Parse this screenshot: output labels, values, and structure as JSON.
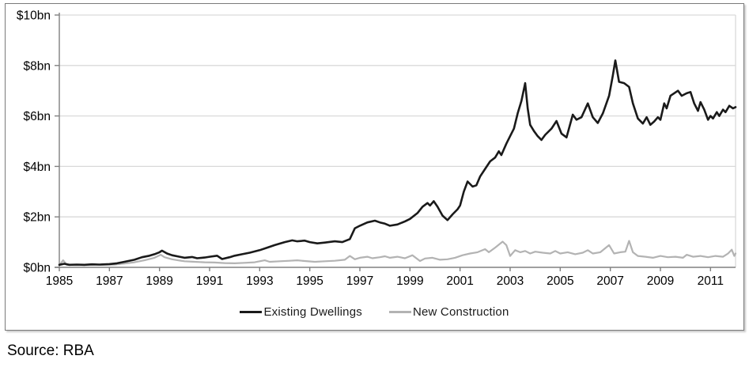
{
  "figure": {
    "source_note": "Source: RBA"
  },
  "chart_data": {
    "type": "line",
    "title": "",
    "xlabel": "",
    "ylabel": "",
    "unit": "$bn",
    "ylim": [
      0,
      10
    ],
    "xlim": [
      1985,
      2012.05
    ],
    "grid": "horizontal",
    "legend_position": "bottom-center",
    "y_ticks": [
      {
        "value": 0,
        "label": "$0bn"
      },
      {
        "value": 2,
        "label": "$2bn"
      },
      {
        "value": 4,
        "label": "$4bn"
      },
      {
        "value": 6,
        "label": "$6bn"
      },
      {
        "value": 8,
        "label": "$8bn"
      },
      {
        "value": 10,
        "label": "$10bn"
      }
    ],
    "x_ticks": [
      {
        "value": 1985,
        "label": "1985"
      },
      {
        "value": 1987,
        "label": "1987"
      },
      {
        "value": 1989,
        "label": "1989"
      },
      {
        "value": 1991,
        "label": "1991"
      },
      {
        "value": 1993,
        "label": "1993"
      },
      {
        "value": 1995,
        "label": "1995"
      },
      {
        "value": 1997,
        "label": "1997"
      },
      {
        "value": 1999,
        "label": "1999"
      },
      {
        "value": 2001,
        "label": "2001"
      },
      {
        "value": 2003,
        "label": "2003"
      },
      {
        "value": 2005,
        "label": "2005"
      },
      {
        "value": 2007,
        "label": "2007"
      },
      {
        "value": 2009,
        "label": "2009"
      },
      {
        "value": 2011,
        "label": "2011"
      }
    ],
    "colors": {
      "gridline": "#d9d9d9",
      "axis": "#808080",
      "text": "#000000"
    },
    "series": [
      {
        "name": "Existing Dwellings",
        "color": "#1a1a1a",
        "stroke_width": 2.6,
        "points": [
          [
            1985.0,
            0.1
          ],
          [
            1985.2,
            0.14
          ],
          [
            1985.4,
            0.1
          ],
          [
            1985.7,
            0.11
          ],
          [
            1986.0,
            0.1
          ],
          [
            1986.3,
            0.12
          ],
          [
            1986.6,
            0.11
          ],
          [
            1987.0,
            0.13
          ],
          [
            1987.3,
            0.16
          ],
          [
            1987.6,
            0.22
          ],
          [
            1988.0,
            0.3
          ],
          [
            1988.3,
            0.4
          ],
          [
            1988.6,
            0.46
          ],
          [
            1988.8,
            0.52
          ],
          [
            1989.0,
            0.6
          ],
          [
            1989.1,
            0.66
          ],
          [
            1989.3,
            0.55
          ],
          [
            1989.5,
            0.48
          ],
          [
            1989.8,
            0.42
          ],
          [
            1990.0,
            0.38
          ],
          [
            1990.3,
            0.41
          ],
          [
            1990.5,
            0.36
          ],
          [
            1990.8,
            0.39
          ],
          [
            1991.0,
            0.42
          ],
          [
            1991.3,
            0.46
          ],
          [
            1991.5,
            0.33
          ],
          [
            1991.8,
            0.4
          ],
          [
            1992.0,
            0.46
          ],
          [
            1992.3,
            0.52
          ],
          [
            1992.6,
            0.58
          ],
          [
            1993.0,
            0.68
          ],
          [
            1993.3,
            0.78
          ],
          [
            1993.6,
            0.88
          ],
          [
            1994.0,
            1.0
          ],
          [
            1994.3,
            1.07
          ],
          [
            1994.5,
            1.03
          ],
          [
            1994.8,
            1.06
          ],
          [
            1995.0,
            1.0
          ],
          [
            1995.3,
            0.95
          ],
          [
            1995.6,
            0.98
          ],
          [
            1996.0,
            1.03
          ],
          [
            1996.3,
            1.0
          ],
          [
            1996.6,
            1.12
          ],
          [
            1996.8,
            1.55
          ],
          [
            1997.0,
            1.65
          ],
          [
            1997.3,
            1.78
          ],
          [
            1997.6,
            1.85
          ],
          [
            1997.8,
            1.78
          ],
          [
            1998.0,
            1.73
          ],
          [
            1998.2,
            1.65
          ],
          [
            1998.5,
            1.7
          ],
          [
            1998.8,
            1.82
          ],
          [
            1999.0,
            1.92
          ],
          [
            1999.3,
            2.15
          ],
          [
            1999.5,
            2.4
          ],
          [
            1999.7,
            2.55
          ],
          [
            1999.8,
            2.45
          ],
          [
            1999.95,
            2.62
          ],
          [
            2000.1,
            2.4
          ],
          [
            2000.3,
            2.05
          ],
          [
            2000.5,
            1.87
          ],
          [
            2000.7,
            2.1
          ],
          [
            2000.9,
            2.3
          ],
          [
            2001.0,
            2.45
          ],
          [
            2001.15,
            3.0
          ],
          [
            2001.3,
            3.4
          ],
          [
            2001.5,
            3.2
          ],
          [
            2001.65,
            3.25
          ],
          [
            2001.8,
            3.6
          ],
          [
            2002.0,
            3.9
          ],
          [
            2002.2,
            4.2
          ],
          [
            2002.4,
            4.35
          ],
          [
            2002.55,
            4.6
          ],
          [
            2002.65,
            4.45
          ],
          [
            2002.85,
            4.9
          ],
          [
            2003.0,
            5.2
          ],
          [
            2003.15,
            5.5
          ],
          [
            2003.3,
            6.1
          ],
          [
            2003.45,
            6.6
          ],
          [
            2003.6,
            7.3
          ],
          [
            2003.7,
            6.3
          ],
          [
            2003.8,
            5.65
          ],
          [
            2003.95,
            5.4
          ],
          [
            2004.1,
            5.2
          ],
          [
            2004.25,
            5.05
          ],
          [
            2004.4,
            5.25
          ],
          [
            2004.65,
            5.5
          ],
          [
            2004.85,
            5.8
          ],
          [
            2005.05,
            5.3
          ],
          [
            2005.25,
            5.15
          ],
          [
            2005.5,
            6.05
          ],
          [
            2005.65,
            5.85
          ],
          [
            2005.85,
            5.95
          ],
          [
            2006.1,
            6.5
          ],
          [
            2006.3,
            5.95
          ],
          [
            2006.5,
            5.72
          ],
          [
            2006.7,
            6.1
          ],
          [
            2006.95,
            6.8
          ],
          [
            2007.1,
            7.6
          ],
          [
            2007.2,
            8.2
          ],
          [
            2007.35,
            7.35
          ],
          [
            2007.55,
            7.3
          ],
          [
            2007.75,
            7.15
          ],
          [
            2007.9,
            6.5
          ],
          [
            2008.1,
            5.9
          ],
          [
            2008.3,
            5.7
          ],
          [
            2008.45,
            5.95
          ],
          [
            2008.6,
            5.65
          ],
          [
            2008.75,
            5.78
          ],
          [
            2008.9,
            5.95
          ],
          [
            2009.0,
            5.85
          ],
          [
            2009.15,
            6.5
          ],
          [
            2009.25,
            6.3
          ],
          [
            2009.4,
            6.8
          ],
          [
            2009.55,
            6.9
          ],
          [
            2009.7,
            7.0
          ],
          [
            2009.85,
            6.8
          ],
          [
            2010.05,
            6.9
          ],
          [
            2010.2,
            6.95
          ],
          [
            2010.35,
            6.5
          ],
          [
            2010.5,
            6.2
          ],
          [
            2010.6,
            6.55
          ],
          [
            2010.75,
            6.25
          ],
          [
            2010.9,
            5.85
          ],
          [
            2011.0,
            6.0
          ],
          [
            2011.1,
            5.9
          ],
          [
            2011.25,
            6.15
          ],
          [
            2011.35,
            6.0
          ],
          [
            2011.5,
            6.25
          ],
          [
            2011.6,
            6.15
          ],
          [
            2011.75,
            6.4
          ],
          [
            2011.9,
            6.3
          ],
          [
            2012.0,
            6.35
          ]
        ]
      },
      {
        "name": "New Construction",
        "color": "#b3b3b3",
        "stroke_width": 2.2,
        "points": [
          [
            1985.0,
            0.08
          ],
          [
            1985.15,
            0.28
          ],
          [
            1985.3,
            0.1
          ],
          [
            1985.6,
            0.09
          ],
          [
            1986.0,
            0.09
          ],
          [
            1986.4,
            0.1
          ],
          [
            1986.8,
            0.1
          ],
          [
            1987.2,
            0.11
          ],
          [
            1987.6,
            0.15
          ],
          [
            1988.0,
            0.2
          ],
          [
            1988.4,
            0.28
          ],
          [
            1988.8,
            0.38
          ],
          [
            1989.05,
            0.5
          ],
          [
            1989.2,
            0.4
          ],
          [
            1989.5,
            0.32
          ],
          [
            1989.8,
            0.27
          ],
          [
            1990.0,
            0.24
          ],
          [
            1990.4,
            0.22
          ],
          [
            1990.8,
            0.2
          ],
          [
            1991.2,
            0.19
          ],
          [
            1991.6,
            0.17
          ],
          [
            1992.0,
            0.16
          ],
          [
            1992.4,
            0.18
          ],
          [
            1992.8,
            0.2
          ],
          [
            1993.2,
            0.28
          ],
          [
            1993.4,
            0.22
          ],
          [
            1993.8,
            0.24
          ],
          [
            1994.2,
            0.26
          ],
          [
            1994.5,
            0.28
          ],
          [
            1994.8,
            0.25
          ],
          [
            1995.2,
            0.22
          ],
          [
            1995.6,
            0.24
          ],
          [
            1996.0,
            0.26
          ],
          [
            1996.4,
            0.3
          ],
          [
            1996.6,
            0.45
          ],
          [
            1996.8,
            0.32
          ],
          [
            1997.0,
            0.38
          ],
          [
            1997.3,
            0.42
          ],
          [
            1997.5,
            0.36
          ],
          [
            1997.8,
            0.4
          ],
          [
            1998.0,
            0.44
          ],
          [
            1998.2,
            0.38
          ],
          [
            1998.5,
            0.42
          ],
          [
            1998.8,
            0.36
          ],
          [
            1999.1,
            0.48
          ],
          [
            1999.4,
            0.25
          ],
          [
            1999.6,
            0.35
          ],
          [
            1999.9,
            0.38
          ],
          [
            2000.2,
            0.3
          ],
          [
            2000.5,
            0.32
          ],
          [
            2000.8,
            0.38
          ],
          [
            2001.1,
            0.48
          ],
          [
            2001.4,
            0.55
          ],
          [
            2001.7,
            0.6
          ],
          [
            2002.0,
            0.72
          ],
          [
            2002.15,
            0.6
          ],
          [
            2002.4,
            0.78
          ],
          [
            2002.7,
            1.02
          ],
          [
            2002.85,
            0.88
          ],
          [
            2003.0,
            0.45
          ],
          [
            2003.2,
            0.68
          ],
          [
            2003.4,
            0.6
          ],
          [
            2003.6,
            0.65
          ],
          [
            2003.8,
            0.55
          ],
          [
            2004.0,
            0.62
          ],
          [
            2004.3,
            0.58
          ],
          [
            2004.6,
            0.55
          ],
          [
            2004.8,
            0.65
          ],
          [
            2005.0,
            0.55
          ],
          [
            2005.3,
            0.6
          ],
          [
            2005.6,
            0.52
          ],
          [
            2005.9,
            0.58
          ],
          [
            2006.1,
            0.68
          ],
          [
            2006.3,
            0.55
          ],
          [
            2006.6,
            0.6
          ],
          [
            2006.95,
            0.88
          ],
          [
            2007.15,
            0.55
          ],
          [
            2007.4,
            0.6
          ],
          [
            2007.6,
            0.62
          ],
          [
            2007.75,
            1.05
          ],
          [
            2007.9,
            0.6
          ],
          [
            2008.1,
            0.45
          ],
          [
            2008.4,
            0.42
          ],
          [
            2008.7,
            0.38
          ],
          [
            2009.0,
            0.45
          ],
          [
            2009.3,
            0.4
          ],
          [
            2009.6,
            0.42
          ],
          [
            2009.9,
            0.38
          ],
          [
            2010.05,
            0.5
          ],
          [
            2010.3,
            0.42
          ],
          [
            2010.6,
            0.45
          ],
          [
            2010.9,
            0.4
          ],
          [
            2011.2,
            0.45
          ],
          [
            2011.5,
            0.42
          ],
          [
            2011.7,
            0.55
          ],
          [
            2011.85,
            0.7
          ],
          [
            2011.95,
            0.45
          ],
          [
            2012.0,
            0.55
          ]
        ]
      }
    ]
  }
}
